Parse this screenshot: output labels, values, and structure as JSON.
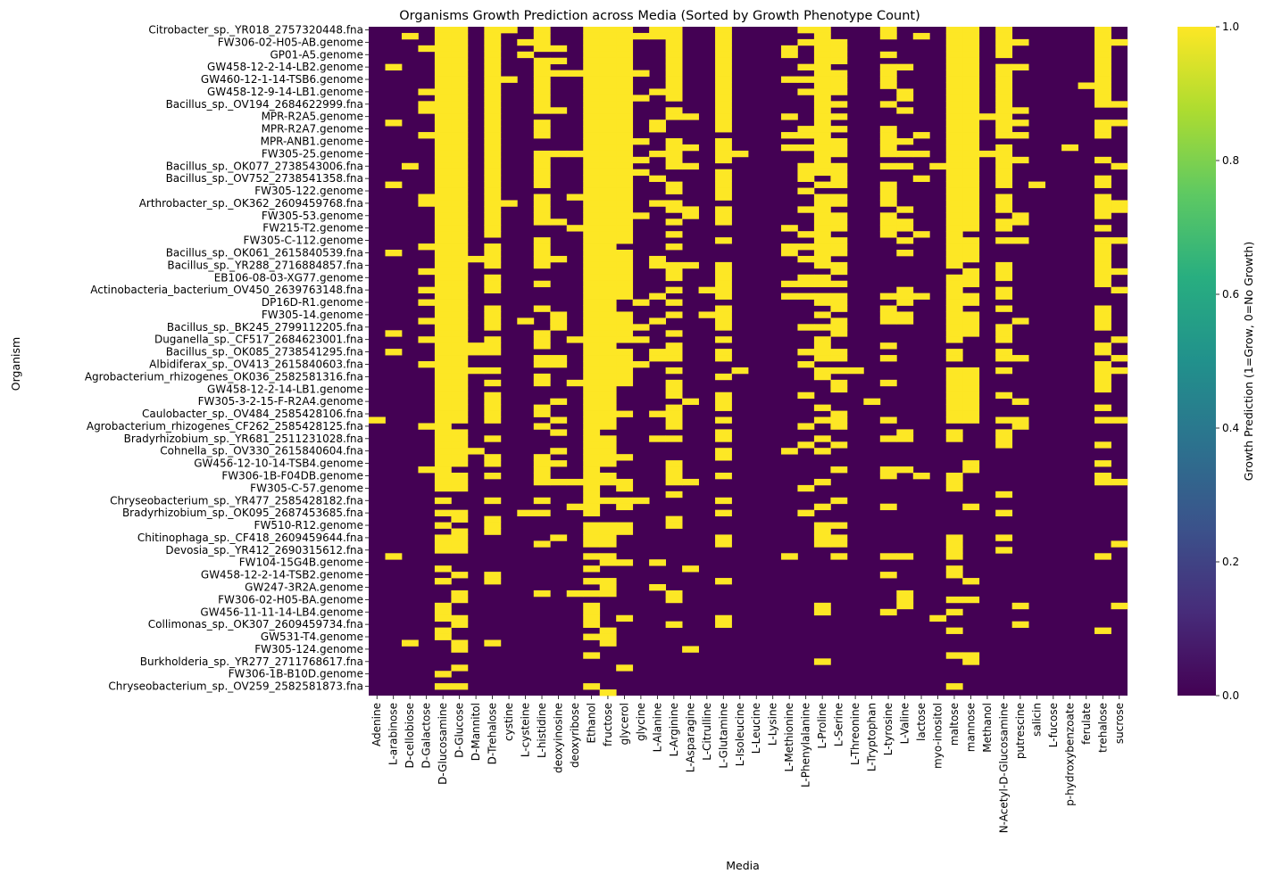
{
  "chart_data": {
    "type": "heatmap",
    "title": "Organisms Growth Prediction across Media (Sorted by Growth Phenotype Count)",
    "xlabel": "Media",
    "ylabel": "Organism",
    "colorbar_label": "Growth Prediction (1=Grow, 0=No Growth)",
    "colorbar_ticks": [
      "0.0",
      "0.2",
      "0.4",
      "0.6",
      "0.8",
      "1.0"
    ],
    "value_range": [
      0,
      1
    ],
    "colormap": "viridis",
    "low_color": "#440154",
    "high_color": "#fde725",
    "organism_labels": [
      "Citrobacter_sp._YR018_2757320448.fna",
      "FW306-02-H05-AB.genome",
      "GP01-A5.genome",
      "GW458-12-2-14-LB2.genome",
      "GW460-12-1-14-TSB6.genome",
      "GW458-12-9-14-LB1.genome",
      "Bacillus_sp._OV194_2684622999.fna",
      "MPR-R2A5.genome",
      "MPR-R2A7.genome",
      "MPR-ANB1.genome",
      "FW305-25.genome",
      "Bacillus_sp._OK077_2738543006.fna",
      "Bacillus_sp._OV752_2738541358.fna",
      "FW305-122.genome",
      "Arthrobacter_sp._OK362_2609459768.fna",
      "FW305-53.genome",
      "FW215-T2.genome",
      "FW305-C-112.genome",
      "Bacillus_sp._OK061_2615840539.fna",
      "Bacillus_sp._YR288_2716884857.fna",
      "EB106-08-03-XG77.genome",
      "Actinobacteria_bacterium_OV450_2639763148.fna",
      "DP16D-R1.genome",
      "FW305-14.genome",
      "Bacillus_sp._BK245_2799112205.fna",
      "Duganella_sp._CF517_2684623001.fna",
      "Bacillus_sp._OK085_2738541295.fna",
      "Albidiferax_sp._OV413_2615840603.fna",
      "Agrobacterium_rhizogenes_OK036_2582581316.fna",
      "GW458-12-2-14-LB1.genome",
      "FW305-3-2-15-F-R2A4.genome",
      "Caulobacter_sp._OV484_2585428106.fna",
      "Agrobacterium_rhizogenes_CF262_2585428125.fna",
      "Bradyrhizobium_sp._YR681_2511231028.fna",
      "Cohnella_sp._OV330_2615840604.fna",
      "GW456-12-10-14-TSB4.genome",
      "FW306-1B-F04DB.genome",
      "FW305-C-57.genome",
      "Chryseobacterium_sp._YR477_2585428182.fna",
      "Bradyrhizobium_sp._OK095_2687453685.fna",
      "FW510-R12.genome",
      "Chitinophaga_sp._CF418_2609459644.fna",
      "Devosia_sp._YR412_2690315612.fna",
      "FW104-15G4B.genome",
      "GW458-12-2-14-TSB2.genome",
      "GW247-3R2A.genome",
      "FW306-02-H05-BA.genome",
      "GW456-11-11-14-LB4.genome",
      "Collimonas_sp._OK307_2609459734.fna",
      "GW531-T4.genome",
      "FW305-124.genome",
      "Burkholderia_sp._YR277_2711768617.fna",
      "FW306-1B-B10D.genome",
      "Chryseobacterium_sp._OV259_2582581873.fna"
    ],
    "media": [
      "Adenine",
      "L-arabinose",
      "D-cellobiose",
      "D-Galactose",
      "D-Glucosamine",
      "D-Glucose",
      "D-Mannitol",
      "D-Trehalose",
      "cystine",
      "L-cysteine",
      "L-histidine",
      "deoxyinosine",
      "deoxyribose",
      "Ethanol",
      "fructose",
      "glycerol",
      "glycine",
      "L-Alanine",
      "L-Arginine",
      "L-Asparagine",
      "L-Citrulline",
      "L-Glutamine",
      "L-Isoleucine",
      "L-Leucine",
      "L-Lysine",
      "L-Methionine",
      "L-Phenylalanine",
      "L-Proline",
      "L-Serine",
      "L-Threonine",
      "L-Tryptophan",
      "L-tyrosine",
      "L-Valine",
      "lactose",
      "myo-inositol",
      "maltose",
      "mannose",
      "Methanol",
      "N-Acetyl-D-Glucosamine",
      "putrescine",
      "salicin",
      "L-fucose",
      "p-hydroxybenzoate",
      "ferulate",
      "trehalose",
      "sucrose"
    ],
    "rows_per_label": 2,
    "growth_fraction_by_medium": [
      0.02,
      0.12,
      0.04,
      0.1,
      0.84,
      0.85,
      0.05,
      0.6,
      0.03,
      0.02,
      0.45,
      0.15,
      0.08,
      0.93,
      0.9,
      0.72,
      0.08,
      0.22,
      0.48,
      0.08,
      0.03,
      0.56,
      0.05,
      0.01,
      0.01,
      0.15,
      0.25,
      0.62,
      0.44,
      0.01,
      0.01,
      0.33,
      0.22,
      0.06,
      0.01,
      0.74,
      0.7,
      0.01,
      0.52,
      0.14,
      0.01,
      0.01,
      0.01,
      0.01,
      0.5,
      0.16
    ]
  }
}
